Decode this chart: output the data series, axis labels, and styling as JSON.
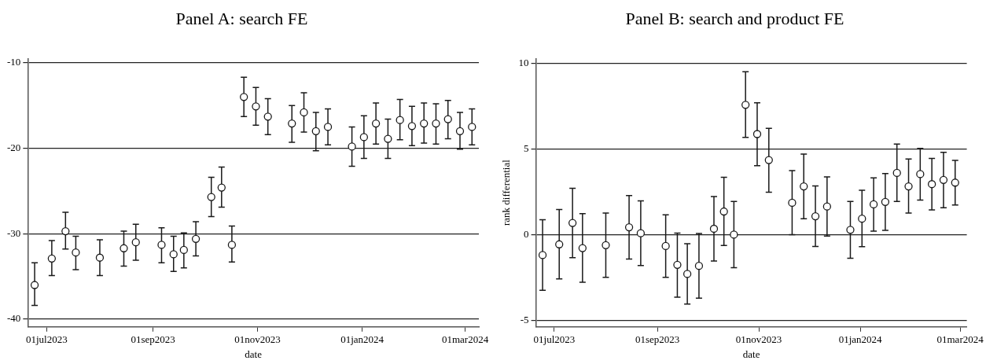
{
  "chart_data": [
    {
      "type": "scatter",
      "title": "Panel A: search FE",
      "xlabel": "date",
      "marker": "circle",
      "grid": "y",
      "legend": false,
      "x": [
        "2023-06-24",
        "2023-07-04",
        "2023-07-12",
        "2023-07-18",
        "2023-08-01",
        "2023-08-15",
        "2023-08-22",
        "2023-09-06",
        "2023-09-13",
        "2023-09-19",
        "2023-09-26",
        "2023-10-05",
        "2023-10-11",
        "2023-10-17",
        "2023-10-24",
        "2023-10-31",
        "2023-11-07",
        "2023-11-21",
        "2023-11-28",
        "2023-12-05",
        "2023-12-12",
        "2023-12-26",
        "2024-01-02",
        "2024-01-09",
        "2024-01-16",
        "2024-01-23",
        "2024-01-30",
        "2024-02-06",
        "2024-02-13",
        "2024-02-20",
        "2024-02-27",
        "2024-03-05"
      ],
      "series": [
        {
          "color": "#1a1a1a",
          "values": [
            -36.0,
            -32.9,
            -29.7,
            -32.2,
            -32.8,
            -31.7,
            -31.0,
            -31.3,
            -32.4,
            -31.9,
            -30.6,
            -25.7,
            -24.6,
            -31.3,
            -14.0,
            -15.1,
            -16.3,
            -17.1,
            -15.8,
            -18.0,
            -17.5,
            -19.8,
            -18.7,
            -17.1,
            -18.9,
            -16.7,
            -17.4,
            -17.1,
            -17.1,
            -16.6,
            -18.0,
            -17.5
          ],
          "errors": [
            [
              -38.4,
              -33.4
            ],
            [
              -34.9,
              -30.8
            ],
            [
              -31.8,
              -27.5
            ],
            [
              -34.2,
              -30.3
            ],
            [
              -34.9,
              -30.7
            ],
            [
              -33.8,
              -29.7
            ],
            [
              -33.1,
              -28.9
            ],
            [
              -33.4,
              -29.3
            ],
            [
              -34.4,
              -30.3
            ],
            [
              -34.0,
              -29.9
            ],
            [
              -32.6,
              -28.6
            ],
            [
              -28.0,
              -23.4
            ],
            [
              -26.9,
              -22.2
            ],
            [
              -33.3,
              -29.1
            ],
            [
              -16.3,
              -11.7
            ],
            [
              -17.3,
              -12.9
            ],
            [
              -18.4,
              -14.2
            ],
            [
              -19.3,
              -15.0
            ],
            [
              -18.1,
              -13.5
            ],
            [
              -20.3,
              -15.8
            ],
            [
              -19.6,
              -15.4
            ],
            [
              -22.1,
              -17.5
            ],
            [
              -21.2,
              -16.2
            ],
            [
              -19.5,
              -14.7
            ],
            [
              -21.2,
              -16.6
            ],
            [
              -19.0,
              -14.3
            ],
            [
              -19.7,
              -15.1
            ],
            [
              -19.4,
              -14.7
            ],
            [
              -19.5,
              -14.8
            ],
            [
              -18.9,
              -14.4
            ],
            [
              -20.1,
              -15.8
            ],
            [
              -19.6,
              -15.4
            ]
          ]
        }
      ],
      "xlim": [
        "2023-06-20",
        "2024-03-09"
      ],
      "xticks": [
        {
          "value": "2023-07-01",
          "label": "01jul2023"
        },
        {
          "value": "2023-09-01",
          "label": "01sep2023"
        },
        {
          "value": "2023-11-01",
          "label": "01nov2023"
        },
        {
          "value": "2024-01-01",
          "label": "01jan2024"
        },
        {
          "value": "2024-03-01",
          "label": "01mar2024"
        }
      ],
      "ylim": [
        -40.9,
        -9.5
      ],
      "yticks": [
        -40,
        -30,
        -20,
        -10
      ]
    },
    {
      "type": "scatter",
      "title": "Panel B: search and product FE",
      "xlabel": "date",
      "ylabel": "rank differential",
      "marker": "circle",
      "grid": "y",
      "legend": false,
      "x": [
        "2023-06-24",
        "2023-07-04",
        "2023-07-12",
        "2023-07-18",
        "2023-08-01",
        "2023-08-15",
        "2023-08-22",
        "2023-09-06",
        "2023-09-13",
        "2023-09-19",
        "2023-09-26",
        "2023-10-05",
        "2023-10-11",
        "2023-10-17",
        "2023-10-24",
        "2023-10-31",
        "2023-11-07",
        "2023-11-21",
        "2023-11-28",
        "2023-12-05",
        "2023-12-12",
        "2023-12-26",
        "2024-01-02",
        "2024-01-09",
        "2024-01-16",
        "2024-01-23",
        "2024-01-30",
        "2024-02-06",
        "2024-02-13",
        "2024-02-20",
        "2024-02-27"
      ],
      "series": [
        {
          "color": "#1a1a1a",
          "values": [
            -1.2,
            -0.57,
            0.68,
            -0.79,
            -0.62,
            0.43,
            0.08,
            -0.67,
            -1.77,
            -2.3,
            -1.83,
            0.34,
            1.35,
            0.0,
            7.59,
            5.88,
            4.36,
            1.86,
            2.82,
            1.07,
            1.64,
            0.28,
            0.93,
            1.77,
            1.91,
            3.61,
            2.82,
            3.54,
            2.95,
            3.2,
            3.04
          ],
          "errors": [
            [
              -3.26,
              0.87
            ],
            [
              -2.59,
              1.47
            ],
            [
              -1.35,
              2.71
            ],
            [
              -2.79,
              1.23
            ],
            [
              -2.5,
              1.26
            ],
            [
              -1.43,
              2.28
            ],
            [
              -1.81,
              1.97
            ],
            [
              -2.5,
              1.16
            ],
            [
              -3.66,
              0.09
            ],
            [
              -4.06,
              -0.54
            ],
            [
              -3.72,
              0.06
            ],
            [
              -1.55,
              2.23
            ],
            [
              -0.64,
              3.35
            ],
            [
              -1.94,
              1.94
            ],
            [
              5.68,
              9.52
            ],
            [
              4.03,
              7.71
            ],
            [
              2.48,
              6.21
            ],
            [
              0.0,
              3.74
            ],
            [
              0.93,
              4.71
            ],
            [
              -0.7,
              2.84
            ],
            [
              -0.09,
              3.37
            ],
            [
              -1.38,
              1.94
            ],
            [
              -0.71,
              2.59
            ],
            [
              0.2,
              3.32
            ],
            [
              0.25,
              3.57
            ],
            [
              1.94,
              5.3
            ],
            [
              1.26,
              4.42
            ],
            [
              2.02,
              5.04
            ],
            [
              1.44,
              4.45
            ],
            [
              1.57,
              4.81
            ],
            [
              1.73,
              4.34
            ]
          ]
        }
      ],
      "xlim": [
        "2023-06-20",
        "2024-03-05"
      ],
      "xticks": [
        {
          "value": "2023-07-01",
          "label": "01jul2023"
        },
        {
          "value": "2023-09-01",
          "label": "01sep2023"
        },
        {
          "value": "2023-11-01",
          "label": "01nov2023"
        },
        {
          "value": "2024-01-01",
          "label": "01jan2024"
        },
        {
          "value": "2024-03-01",
          "label": "01mar2024"
        }
      ],
      "ylim": [
        -5.4,
        10.3
      ],
      "yticks": [
        -5,
        0,
        5,
        10
      ]
    }
  ]
}
